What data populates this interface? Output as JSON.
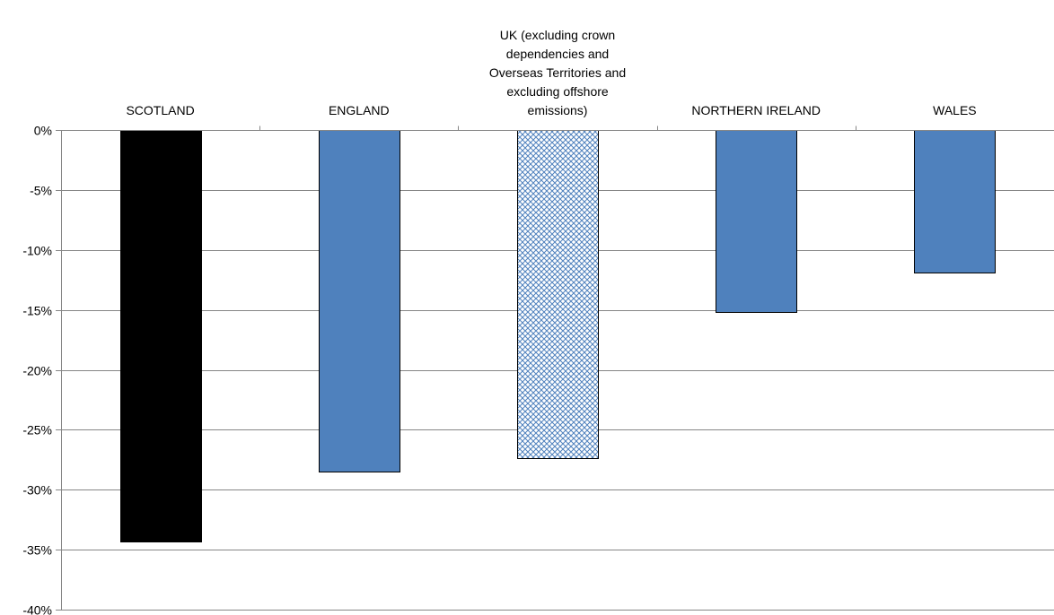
{
  "chart_data": {
    "type": "bar",
    "categories": [
      "SCOTLAND",
      "ENGLAND",
      "UK (excluding crown dependencies and Overseas Territories and excluding offshore emissions)",
      "NORTHERN IRELAND",
      "WALES"
    ],
    "category_label_lines": [
      [
        "SCOTLAND"
      ],
      [
        "ENGLAND"
      ],
      [
        "UK (excluding crown",
        "dependencies and",
        "Overseas Territories and",
        "excluding offshore",
        "emissions)"
      ],
      [
        "NORTHERN IRELAND"
      ],
      [
        "WALES"
      ]
    ],
    "values": [
      -34.3,
      -28.5,
      -27.4,
      -15.2,
      -11.9
    ],
    "value_unit": "%",
    "ylim": [
      -40,
      0
    ],
    "yticks": [
      0,
      -5,
      -10,
      -15,
      -20,
      -25,
      -30,
      -35,
      -40
    ],
    "ytick_labels": [
      "0%",
      "-5%",
      "-10%",
      "-15%",
      "-20%",
      "-25%",
      "-30%",
      "-35%",
      "-40%"
    ],
    "grid": true,
    "category_labels_position": "top",
    "bar_fills": [
      "solid-black",
      "solid-blue",
      "blue-crosshatch",
      "solid-blue",
      "solid-blue"
    ],
    "colors": {
      "black": "#000000",
      "blue": "#4f81bd",
      "hatch_blue": "#4f81bd",
      "grid": "#868686",
      "axis": "#868686"
    },
    "title": "",
    "xlabel": "",
    "ylabel": ""
  }
}
